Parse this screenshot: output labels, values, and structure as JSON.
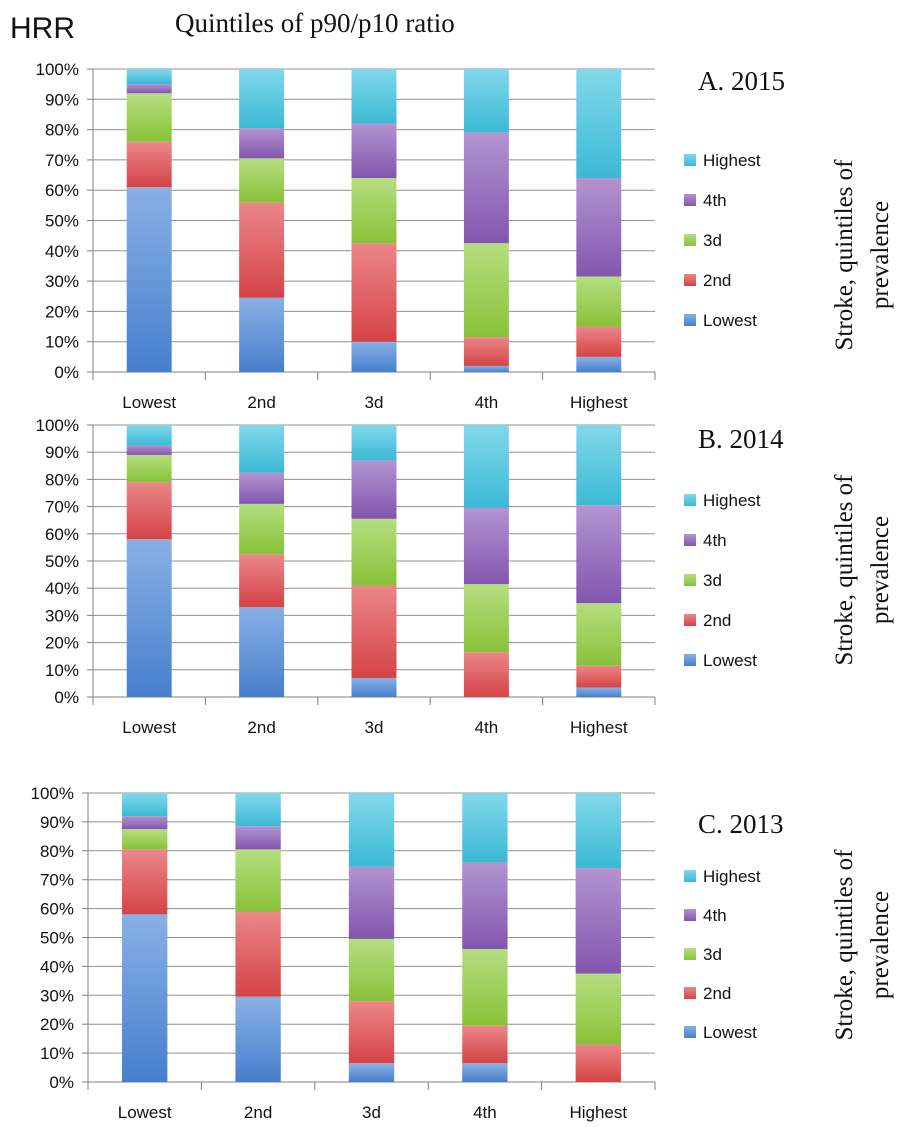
{
  "header": {
    "left_label": "HRR",
    "title": "Quintiles of p90/p10 ratio"
  },
  "y_axis_title": "Stroke, quintiles of prevalence",
  "colors": {
    "Lowest": "#4a86d8",
    "2nd": "#e0464a",
    "3d": "#8fcc3c",
    "4th": "#8a5bb8",
    "Highest": "#3ec3e0"
  },
  "chart_data": [
    {
      "type": "bar",
      "stacked": true,
      "title": "A. 2015",
      "categories": [
        "Lowest",
        "2nd",
        "3d",
        "4th",
        "Highest"
      ],
      "yticks": [
        "0%",
        "10%",
        "20%",
        "30%",
        "40%",
        "50%",
        "60%",
        "70%",
        "80%",
        "90%",
        "100%"
      ],
      "ylim": [
        0,
        100
      ],
      "legend": [
        "Highest",
        "4th",
        "3d",
        "2nd",
        "Lowest"
      ],
      "legend_position": "right",
      "series": [
        {
          "name": "Lowest",
          "values": [
            61,
            24.5,
            10,
            2,
            5
          ]
        },
        {
          "name": "2nd",
          "values": [
            15,
            31.5,
            32.5,
            9.5,
            10
          ]
        },
        {
          "name": "3d",
          "values": [
            16,
            14.5,
            21.5,
            31,
            16.5
          ]
        },
        {
          "name": "4th",
          "values": [
            3,
            10,
            18,
            36.5,
            32.5
          ]
        },
        {
          "name": "Highest",
          "values": [
            5,
            19.5,
            18,
            21,
            36
          ]
        }
      ]
    },
    {
      "type": "bar",
      "stacked": true,
      "title": "B. 2014",
      "categories": [
        "Lowest",
        "2nd",
        "3d",
        "4th",
        "Highest"
      ],
      "yticks": [
        "0%",
        "10%",
        "20%",
        "30%",
        "40%",
        "50%",
        "60%",
        "70%",
        "80%",
        "90%",
        "100%"
      ],
      "ylim": [
        0,
        100
      ],
      "legend": [
        "Highest",
        "4th",
        "3d",
        "2nd",
        "Lowest"
      ],
      "legend_position": "right",
      "series": [
        {
          "name": "Lowest",
          "values": [
            58,
            33,
            7,
            0,
            3.5
          ]
        },
        {
          "name": "2nd",
          "values": [
            21,
            19.5,
            34,
            16.5,
            8
          ]
        },
        {
          "name": "3d",
          "values": [
            10,
            18.5,
            24.5,
            25,
            23
          ]
        },
        {
          "name": "4th",
          "values": [
            3.5,
            11.5,
            21.5,
            28,
            36
          ]
        },
        {
          "name": "Highest",
          "values": [
            7.5,
            17.5,
            13,
            30.5,
            29.5
          ]
        }
      ]
    },
    {
      "type": "bar",
      "stacked": true,
      "title": "C. 2013",
      "categories": [
        "Lowest",
        "2nd",
        "3d",
        "4th",
        "Highest"
      ],
      "yticks": [
        "0%",
        "10%",
        "20%",
        "30%",
        "40%",
        "50%",
        "60%",
        "70%",
        "80%",
        "90%",
        "100%"
      ],
      "ylim": [
        0,
        100
      ],
      "legend": [
        "Highest",
        "4th",
        "3d",
        "2nd",
        "Lowest"
      ],
      "legend_position": "right",
      "series": [
        {
          "name": "Lowest",
          "values": [
            58,
            29.5,
            6.5,
            6.5,
            0
          ]
        },
        {
          "name": "2nd",
          "values": [
            22.5,
            29.5,
            21.5,
            13,
            13
          ]
        },
        {
          "name": "3d",
          "values": [
            7,
            21.5,
            21.5,
            26.5,
            24.5
          ]
        },
        {
          "name": "4th",
          "values": [
            4.5,
            8,
            25,
            30,
            36.5
          ]
        },
        {
          "name": "Highest",
          "values": [
            8,
            11.5,
            25.5,
            24,
            26
          ]
        }
      ]
    }
  ]
}
